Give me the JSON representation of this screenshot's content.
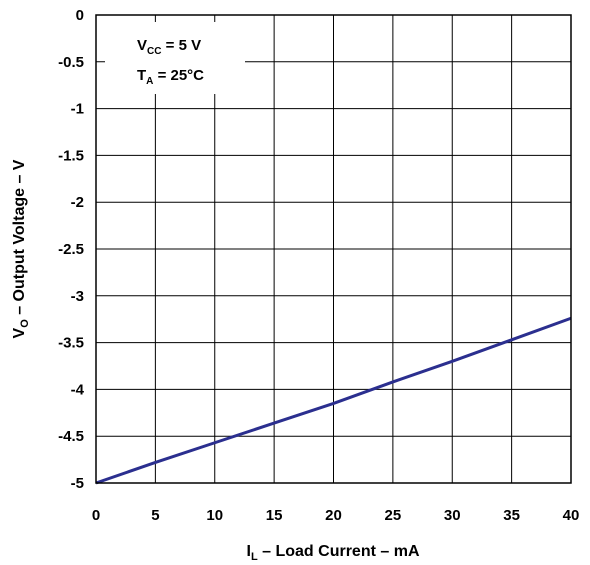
{
  "chart_data": {
    "type": "line",
    "title": "",
    "xlabel": {
      "main": "I",
      "sub": "L",
      "rest": " – Load Current – mA"
    },
    "ylabel": {
      "main": "V",
      "sub": "O",
      "rest": " – Output Voltage – V"
    },
    "xlim": [
      0,
      40
    ],
    "ylim": [
      -5,
      0
    ],
    "x_ticks": [
      0,
      5,
      10,
      15,
      20,
      25,
      30,
      35,
      40
    ],
    "y_ticks": [
      0,
      -0.5,
      -1,
      -1.5,
      -2,
      -2.5,
      -3,
      -3.5,
      -4,
      -4.5,
      -5
    ],
    "x_tick_labels": [
      "0",
      "5",
      "10",
      "15",
      "20",
      "25",
      "30",
      "35",
      "40"
    ],
    "y_tick_labels": [
      "0",
      "-0.5",
      "-1",
      "-1.5",
      "-2",
      "-2.5",
      "-3",
      "-3.5",
      "-4",
      "-4.5",
      "-5"
    ],
    "grid": true,
    "series": [
      {
        "color": "#2b2f8f",
        "x": [
          0,
          5,
          10,
          15,
          20,
          25,
          30,
          35,
          40
        ],
        "y": [
          -5.0,
          -4.78,
          -4.57,
          -4.36,
          -4.15,
          -3.92,
          -3.7,
          -3.47,
          -3.24
        ]
      }
    ],
    "annotations": {
      "vcc": {
        "main": "V",
        "sub": "CC",
        "rest": " = 5 V"
      },
      "ta": {
        "main": "T",
        "sub": "A",
        "rest": " = 25°C"
      }
    }
  }
}
